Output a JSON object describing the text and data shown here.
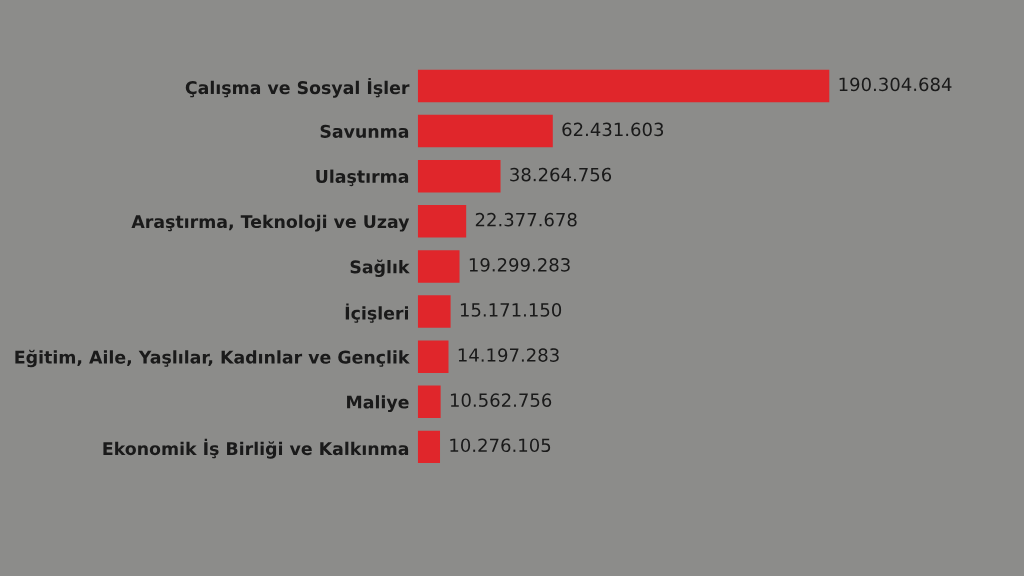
{
  "chart_data": {
    "type": "bar",
    "orientation": "horizontal",
    "categories": [
      "Çalışma ve Sosyal İşler",
      "Savunma",
      "Ulaştırma",
      "Araştırma, Teknoloji ve Uzay",
      "Sağlık",
      "İçişleri",
      "Eğitim, Aile, Yaşlılar, Kadınlar ve Gençlik",
      "Maliye",
      "Ekonomik İş Birliği ve Kalkınma"
    ],
    "values": [
      190304684,
      62431603,
      38264756,
      22377678,
      19299283,
      15171150,
      14197283,
      10562756,
      10276105
    ],
    "value_labels": [
      "190.304.684",
      "62.431.603",
      "38.264.756",
      "22.377.678",
      "19.299.283",
      "15.171.150",
      "14.197.283",
      "10.562.756",
      "10.276.105"
    ],
    "color": "#e0262b",
    "tick_labels": "y",
    "grid": false,
    "legend": false
  }
}
